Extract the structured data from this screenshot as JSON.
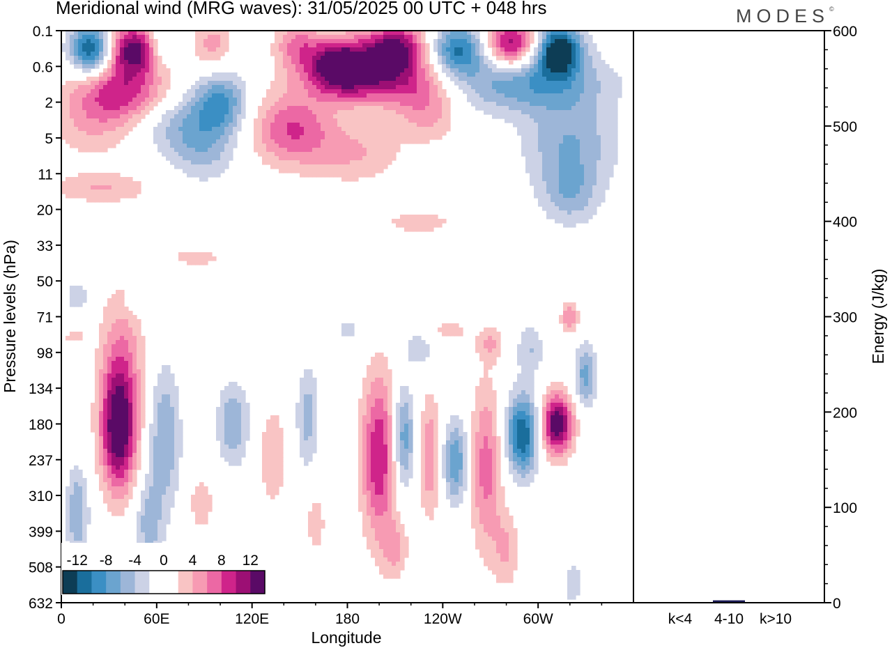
{
  "header": {
    "title": "Meridional wind (MRG waves):  31/05/2025  00 UTC  + 048 hrs",
    "logo": "MODES",
    "logo_mark": "©"
  },
  "chart_data": [
    {
      "type": "heatmap",
      "title": "Meridional wind (MRG waves):  31/05/2025  00 UTC  + 048 hrs",
      "xlabel": "Longitude",
      "ylabel": "Pressure levels (hPa)",
      "x_ticks": [
        "0",
        "60E",
        "120E",
        "180",
        "120W",
        "60W"
      ],
      "y_ticks": [
        "0.1",
        "0.6",
        "2",
        "5",
        "11",
        "20",
        "33",
        "50",
        "71",
        "98",
        "134",
        "180",
        "237",
        "310",
        "399",
        "508",
        "632"
      ],
      "colorbar": {
        "tick_labels": [
          "-12",
          "-8",
          "-4",
          "0",
          "4",
          "8",
          "12"
        ],
        "colors": [
          "#0d3d55",
          "#1a6e9c",
          "#3b8fc4",
          "#6ba4cf",
          "#9db6d8",
          "#ccd2e6",
          "#ffffff",
          "#ffffff",
          "#f9c4c4",
          "#f79bb3",
          "#ec68a4",
          "#cf248a",
          "#9c0f74",
          "#5a0a66"
        ]
      },
      "anomalies": [
        {
          "lon": 20,
          "p": 0.25,
          "v": -14,
          "sx": 10,
          "sy": 0.5
        },
        {
          "lon": 45,
          "p": 0.25,
          "v": 13,
          "sx": 14,
          "sy": 0.5
        },
        {
          "lon": 62,
          "p": 0.2,
          "v": -6,
          "sx": 6,
          "sy": 0.5
        },
        {
          "lon": 95,
          "p": 0.2,
          "v": 5,
          "sx": 8,
          "sy": 0.5
        },
        {
          "lon": 148,
          "p": 0.2,
          "v": 6,
          "sx": 10,
          "sy": 0.5
        },
        {
          "lon": 175,
          "p": 0.5,
          "v": 13,
          "sx": 14,
          "sy": 0.5
        },
        {
          "lon": 210,
          "p": 0.25,
          "v": 13,
          "sx": 14,
          "sy": 0.5
        },
        {
          "lon": 250,
          "p": 0.25,
          "v": -10,
          "sx": 12,
          "sy": 0.5
        },
        {
          "lon": 283,
          "p": 0.2,
          "v": 12,
          "sx": 12,
          "sy": 0.5
        },
        {
          "lon": 313,
          "p": 0.25,
          "v": -14,
          "sx": 10,
          "sy": 0.5
        },
        {
          "lon": 200,
          "p": 1.0,
          "v": 9,
          "sx": 30,
          "sy": 0.5
        },
        {
          "lon": 290,
          "p": 1.0,
          "v": -8,
          "sx": 35,
          "sy": 0.6
        },
        {
          "lon": 40,
          "p": 1.4,
          "v": 8,
          "sx": 20,
          "sy": 0.6
        },
        {
          "lon": 100,
          "p": 2.0,
          "v": -8,
          "sx": 12,
          "sy": 0.6
        },
        {
          "lon": 145,
          "p": 4.0,
          "v": 8,
          "sx": 18,
          "sy": 0.7
        },
        {
          "lon": 230,
          "p": 2.5,
          "v": 5,
          "sx": 14,
          "sy": 0.6
        },
        {
          "lon": 320,
          "p": 6.0,
          "v": -6,
          "sx": 20,
          "sy": 1.0
        },
        {
          "lon": 20,
          "p": 3.0,
          "v": 4,
          "sx": 20,
          "sy": 0.8
        },
        {
          "lon": 75,
          "p": 3.5,
          "v": -5,
          "sx": 20,
          "sy": 0.6
        },
        {
          "lon": 185,
          "p": 7.0,
          "v": 4,
          "sx": 20,
          "sy": 0.6
        },
        {
          "lon": 90,
          "p": 7.0,
          "v": -4,
          "sx": 14,
          "sy": 0.6
        },
        {
          "lon": 25,
          "p": 14.0,
          "v": 4,
          "sx": 22,
          "sy": 0.3
        },
        {
          "lon": 320,
          "p": 16.0,
          "v": -4,
          "sx": 12,
          "sy": 0.6
        },
        {
          "lon": 225,
          "p": 24.0,
          "v": 4,
          "sx": 14,
          "sy": 0.2
        },
        {
          "lon": 85,
          "p": 38.0,
          "v": 4,
          "sx": 10,
          "sy": 0.15
        },
        {
          "lon": 36,
          "p": 190.0,
          "v": 14,
          "sx": 8,
          "sy": 1.2
        },
        {
          "lon": 38,
          "p": 100.0,
          "v": 5,
          "sx": 10,
          "sy": 1.4
        },
        {
          "lon": 65,
          "p": 200.0,
          "v": -6,
          "sx": 7,
          "sy": 1.4
        },
        {
          "lon": 10,
          "p": 350.0,
          "v": -6,
          "sx": 5,
          "sy": 0.9
        },
        {
          "lon": 55,
          "p": 380.0,
          "v": -5,
          "sx": 6,
          "sy": 0.9
        },
        {
          "lon": 88,
          "p": 330.0,
          "v": 4,
          "sx": 5,
          "sy": 0.5
        },
        {
          "lon": 108,
          "p": 180.0,
          "v": -6,
          "sx": 7,
          "sy": 0.8
        },
        {
          "lon": 133,
          "p": 230.0,
          "v": 4,
          "sx": 6,
          "sy": 1.0
        },
        {
          "lon": 155,
          "p": 170.0,
          "v": -5,
          "sx": 5,
          "sy": 1.0
        },
        {
          "lon": 200,
          "p": 230.0,
          "v": 10,
          "sx": 8,
          "sy": 1.6
        },
        {
          "lon": 215,
          "p": 200.0,
          "v": -8,
          "sx": 5,
          "sy": 1.0
        },
        {
          "lon": 232,
          "p": 230.0,
          "v": 6,
          "sx": 5,
          "sy": 1.2
        },
        {
          "lon": 248,
          "p": 240.0,
          "v": -8,
          "sx": 6,
          "sy": 0.8
        },
        {
          "lon": 267,
          "p": 250.0,
          "v": 7,
          "sx": 7,
          "sy": 1.6
        },
        {
          "lon": 290,
          "p": 195.0,
          "v": -12,
          "sx": 7,
          "sy": 0.8
        },
        {
          "lon": 312,
          "p": 180.0,
          "v": 14,
          "sx": 7,
          "sy": 0.6
        },
        {
          "lon": 330,
          "p": 120.0,
          "v": -7,
          "sx": 5,
          "sy": 0.6
        },
        {
          "lon": 295,
          "p": 95.0,
          "v": -4,
          "sx": 6,
          "sy": 0.5
        },
        {
          "lon": 320,
          "p": 72.0,
          "v": 6,
          "sx": 4,
          "sy": 0.3
        },
        {
          "lon": 225,
          "p": 95.0,
          "v": -4,
          "sx": 6,
          "sy": 0.3
        },
        {
          "lon": 180,
          "p": 80.0,
          "v": -3,
          "sx": 5,
          "sy": 0.25
        },
        {
          "lon": 10,
          "p": 58.0,
          "v": -4,
          "sx": 5,
          "sy": 0.25
        },
        {
          "lon": 8,
          "p": 85.0,
          "v": 3,
          "sx": 5,
          "sy": 0.15
        },
        {
          "lon": 50,
          "p": 62.0,
          "v": -3,
          "sx": 7,
          "sy": 0.25
        },
        {
          "lon": 245,
          "p": 80.0,
          "v": 3,
          "sx": 8,
          "sy": 0.25
        },
        {
          "lon": 270,
          "p": 90.0,
          "v": 4,
          "sx": 6,
          "sy": 0.35
        },
        {
          "lon": 210,
          "p": 450.0,
          "v": 4,
          "sx": 6,
          "sy": 0.6
        },
        {
          "lon": 322,
          "p": 560.0,
          "v": -4,
          "sx": 4,
          "sy": 0.4
        },
        {
          "lon": 160,
          "p": 380.0,
          "v": 3,
          "sx": 5,
          "sy": 0.7
        },
        {
          "lon": 280,
          "p": 450.0,
          "v": 4,
          "sx": 6,
          "sy": 0.8
        }
      ]
    },
    {
      "type": "bar",
      "ylabel": "Energy (J/kg)",
      "categories": [
        "k<4",
        "4-10",
        "k>10"
      ],
      "values": [
        0.5,
        2.5,
        0.5
      ],
      "ylim": [
        0,
        600
      ],
      "y_ticks": [
        "0",
        "100",
        "200",
        "300",
        "400",
        "500",
        "600"
      ],
      "bar_color": "#1a1a55"
    }
  ]
}
